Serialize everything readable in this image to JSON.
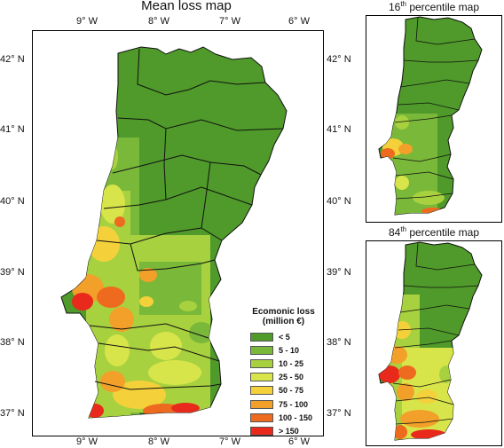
{
  "main_map": {
    "title": "Mean loss map",
    "lon_ticks": [
      "9° W",
      "8° W",
      "7° W",
      "6° W"
    ],
    "lat_ticks": [
      "42° N",
      "41° N",
      "40° N",
      "39° N",
      "38° N",
      "37° N"
    ]
  },
  "inset_16": {
    "title_prefix": "16",
    "title_sup": "th",
    "title_suffix": " percentile map"
  },
  "inset_84": {
    "title_prefix": "84",
    "title_sup": "th",
    "title_suffix": " percentile map"
  },
  "legend": {
    "title_line1": "Ecomonic loss",
    "title_line2": "(million €)",
    "items": [
      {
        "label": "< 5",
        "color": "#4f9a2a"
      },
      {
        "label": "5 - 10",
        "color": "#7ab83a"
      },
      {
        "label": "10 - 25",
        "color": "#a8d13f"
      },
      {
        "label": "25 - 50",
        "color": "#d8e54a"
      },
      {
        "label": "50 - 75",
        "color": "#f4d13a"
      },
      {
        "label": "75 - 100",
        "color": "#f2a02a"
      },
      {
        "label": "100 - 150",
        "color": "#ee6a1f"
      },
      {
        "label": "> 150",
        "color": "#e8291b"
      }
    ]
  }
}
